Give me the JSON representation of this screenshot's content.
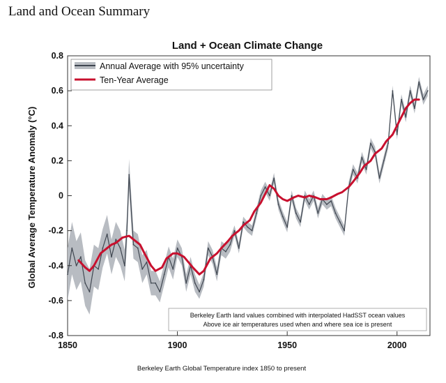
{
  "page_heading": "Land and Ocean Summary",
  "chart_data": {
    "type": "line",
    "title": "Land + Ocean Climate Change",
    "xlabel": "",
    "ylabel": "Global Average Temperature Anomaly (°C)",
    "footer": "Berkeley Earth Global Temperature index  1850 to present",
    "xlim": [
      1850,
      2015
    ],
    "ylim": [
      -0.8,
      0.8
    ],
    "x_ticks": [
      1850,
      1900,
      1950,
      2000
    ],
    "y_ticks": [
      -0.8,
      -0.6,
      -0.4,
      -0.2,
      0,
      0.2,
      0.4,
      0.6,
      0.8
    ],
    "grid": false,
    "legend_position": "top-left",
    "legend": [
      {
        "label": "Annual Average with 95% uncertainty",
        "color": "#3f4650",
        "band_color": "#b8bcc2"
      },
      {
        "label": "Ten-Year Average",
        "color": "#c8102e"
      }
    ],
    "annotation": [
      "Berkeley Earth land values combined with interpolated HadSST ocean values",
      "Above ice air temperatures used when and where sea ice is present"
    ],
    "series": [
      {
        "name": "Annual Average with 95% uncertainty",
        "x": [
          1850,
          1852,
          1854,
          1856,
          1858,
          1860,
          1862,
          1864,
          1866,
          1868,
          1870,
          1872,
          1874,
          1876,
          1877,
          1878,
          1880,
          1882,
          1884,
          1886,
          1888,
          1890,
          1892,
          1894,
          1896,
          1898,
          1900,
          1902,
          1904,
          1906,
          1908,
          1910,
          1912,
          1914,
          1916,
          1918,
          1920,
          1922,
          1924,
          1926,
          1928,
          1930,
          1932,
          1934,
          1936,
          1938,
          1940,
          1942,
          1944,
          1946,
          1948,
          1950,
          1952,
          1954,
          1956,
          1958,
          1960,
          1962,
          1964,
          1966,
          1968,
          1970,
          1972,
          1974,
          1976,
          1978,
          1980,
          1982,
          1984,
          1986,
          1988,
          1990,
          1992,
          1994,
          1996,
          1998,
          2000,
          2002,
          2004,
          2006,
          2008,
          2010,
          2012,
          2014
        ],
        "values": [
          -0.45,
          -0.3,
          -0.4,
          -0.35,
          -0.5,
          -0.55,
          -0.4,
          -0.42,
          -0.3,
          -0.22,
          -0.35,
          -0.25,
          -0.3,
          -0.4,
          -0.2,
          0.12,
          -0.28,
          -0.3,
          -0.42,
          -0.38,
          -0.5,
          -0.5,
          -0.55,
          -0.45,
          -0.35,
          -0.42,
          -0.3,
          -0.35,
          -0.5,
          -0.4,
          -0.5,
          -0.55,
          -0.48,
          -0.3,
          -0.35,
          -0.45,
          -0.3,
          -0.32,
          -0.28,
          -0.2,
          -0.3,
          -0.15,
          -0.18,
          -0.2,
          -0.1,
          0.0,
          0.05,
          0.0,
          0.1,
          -0.05,
          -0.12,
          -0.18,
          0.0,
          -0.1,
          -0.15,
          0.0,
          -0.05,
          0.0,
          -0.1,
          -0.02,
          -0.05,
          -0.03,
          -0.1,
          -0.15,
          -0.2,
          0.05,
          0.15,
          0.1,
          0.22,
          0.15,
          0.3,
          0.25,
          0.1,
          0.2,
          0.3,
          0.6,
          0.35,
          0.55,
          0.45,
          0.6,
          0.5,
          0.65,
          0.55,
          0.6
        ],
        "band_halfwidth": [
          0.15,
          0.15,
          0.14,
          0.14,
          0.13,
          0.13,
          0.12,
          0.12,
          0.11,
          0.11,
          0.1,
          0.1,
          0.1,
          0.09,
          0.09,
          0.09,
          0.08,
          0.08,
          0.08,
          0.07,
          0.07,
          0.07,
          0.06,
          0.06,
          0.06,
          0.06,
          0.05,
          0.05,
          0.05,
          0.05,
          0.05,
          0.04,
          0.04,
          0.04,
          0.04,
          0.04,
          0.04,
          0.04,
          0.04,
          0.03,
          0.03,
          0.03,
          0.03,
          0.03,
          0.03,
          0.03,
          0.03,
          0.03,
          0.03,
          0.03,
          0.03,
          0.03,
          0.03,
          0.03,
          0.03,
          0.03,
          0.03,
          0.03,
          0.03,
          0.03,
          0.03,
          0.03,
          0.03,
          0.03,
          0.03,
          0.03,
          0.03,
          0.03,
          0.03,
          0.03,
          0.03,
          0.03,
          0.03,
          0.03,
          0.03,
          0.03,
          0.03,
          0.03,
          0.03,
          0.03,
          0.03,
          0.03,
          0.03,
          0.03
        ]
      },
      {
        "name": "Ten-Year Average",
        "x": [
          1855,
          1858,
          1860,
          1862,
          1865,
          1868,
          1870,
          1872,
          1875,
          1878,
          1880,
          1883,
          1885,
          1888,
          1890,
          1893,
          1895,
          1898,
          1900,
          1903,
          1905,
          1907,
          1910,
          1912,
          1915,
          1918,
          1920,
          1923,
          1925,
          1928,
          1930,
          1933,
          1935,
          1938,
          1940,
          1942,
          1944,
          1946,
          1948,
          1950,
          1953,
          1955,
          1958,
          1960,
          1963,
          1965,
          1968,
          1970,
          1973,
          1975,
          1978,
          1980,
          1983,
          1985,
          1988,
          1990,
          1993,
          1995,
          1998,
          2000,
          2002,
          2004,
          2006,
          2008,
          2010
        ],
        "values": [
          -0.37,
          -0.41,
          -0.43,
          -0.4,
          -0.33,
          -0.3,
          -0.28,
          -0.27,
          -0.24,
          -0.23,
          -0.25,
          -0.28,
          -0.33,
          -0.4,
          -0.43,
          -0.41,
          -0.36,
          -0.33,
          -0.33,
          -0.35,
          -0.38,
          -0.41,
          -0.45,
          -0.43,
          -0.36,
          -0.33,
          -0.3,
          -0.26,
          -0.23,
          -0.2,
          -0.17,
          -0.14,
          -0.09,
          -0.04,
          0.01,
          0.06,
          0.04,
          0.0,
          -0.02,
          -0.03,
          -0.01,
          0.0,
          -0.01,
          0.0,
          -0.01,
          -0.02,
          -0.02,
          -0.01,
          0.01,
          0.02,
          0.05,
          0.08,
          0.13,
          0.17,
          0.2,
          0.24,
          0.27,
          0.31,
          0.35,
          0.4,
          0.45,
          0.5,
          0.53,
          0.55,
          0.55
        ]
      }
    ]
  }
}
